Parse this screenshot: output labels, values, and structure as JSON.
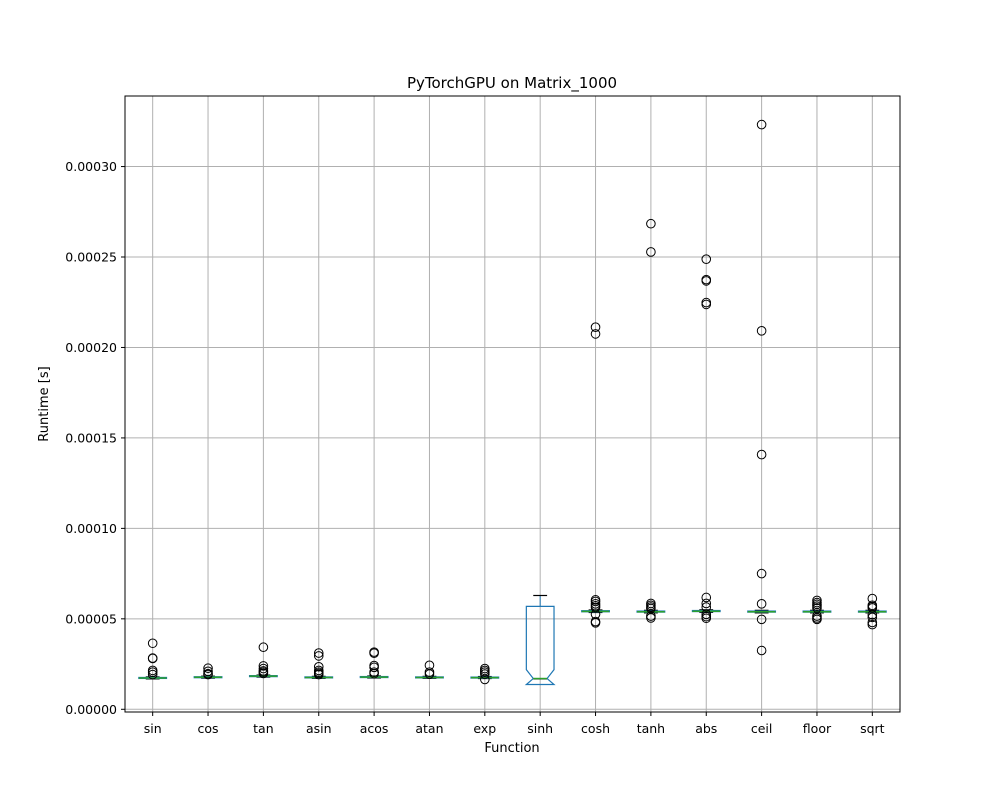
{
  "chart_data": {
    "type": "boxplot",
    "title": "PyTorchGPU on Matrix_1000",
    "xlabel": "Function",
    "ylabel": "Runtime [s]",
    "ylim": [
      -1.5e-06,
      0.000339
    ],
    "yticks": [
      0,
      5e-05,
      0.0001,
      0.00015,
      0.0002,
      0.00025,
      0.0003
    ],
    "ytick_labels": [
      "0.00000",
      "0.00005",
      "0.00010",
      "0.00015",
      "0.00020",
      "0.00025",
      "0.00030"
    ],
    "grid": true,
    "colors": {
      "box": "#1f77b4",
      "median": "#2ca02c",
      "outlier": "#000000",
      "grid": "#b0b0b0"
    },
    "categories": [
      "sin",
      "cos",
      "tan",
      "asin",
      "acos",
      "atan",
      "exp",
      "sinh",
      "cosh",
      "tanh",
      "abs",
      "ceil",
      "floor",
      "sqrt"
    ],
    "boxes": [
      {
        "label": "sin",
        "whislo": 1.68e-05,
        "q1": 1.71e-05,
        "median": 1.73e-05,
        "q3": 1.76e-05,
        "whishi": 1.79e-05,
        "fliers": [
          3.65e-05,
          2.83e-05,
          2.81e-05,
          2.15e-05,
          2.05e-05,
          1.92e-05
        ]
      },
      {
        "label": "cos",
        "whislo": 1.72e-05,
        "q1": 1.75e-05,
        "median": 1.77e-05,
        "q3": 1.8e-05,
        "whishi": 1.83e-05,
        "fliers": [
          2.27e-05,
          2.1e-05,
          1.97e-05,
          1.92e-05
        ]
      },
      {
        "label": "tan",
        "whislo": 1.78e-05,
        "q1": 1.81e-05,
        "median": 1.83e-05,
        "q3": 1.86e-05,
        "whishi": 1.89e-05,
        "fliers": [
          3.43e-05,
          2.4e-05,
          2.25e-05,
          2.12e-05,
          2.05e-05,
          1.98e-05
        ]
      },
      {
        "label": "asin",
        "whislo": 1.71e-05,
        "q1": 1.74e-05,
        "median": 1.76e-05,
        "q3": 1.79e-05,
        "whishi": 1.82e-05,
        "fliers": [
          3.11e-05,
          2.95e-05,
          2.35e-05,
          2.15e-05,
          2.05e-05,
          1.98e-05,
          1.92e-05
        ]
      },
      {
        "label": "acos",
        "whislo": 1.73e-05,
        "q1": 1.76e-05,
        "median": 1.78e-05,
        "q3": 1.81e-05,
        "whishi": 1.84e-05,
        "fliers": [
          3.16e-05,
          3.1e-05,
          2.42e-05,
          2.32e-05,
          2.05e-05,
          1.97e-05
        ]
      },
      {
        "label": "atan",
        "whislo": 1.71e-05,
        "q1": 1.74e-05,
        "median": 1.76e-05,
        "q3": 1.79e-05,
        "whishi": 1.82e-05,
        "fliers": [
          2.43e-05,
          2.05e-05,
          1.95e-05
        ]
      },
      {
        "label": "exp",
        "whislo": 1.7e-05,
        "q1": 1.73e-05,
        "median": 1.75e-05,
        "q3": 1.78e-05,
        "whishi": 1.81e-05,
        "fliers": [
          2.25e-05,
          2.15e-05,
          2.05e-05,
          1.95e-05,
          1.65e-05
        ]
      },
      {
        "label": "sinh",
        "whislo": 1.68e-05,
        "q1": 1.69e-05,
        "median": 1.7e-05,
        "q3": 5.69e-05,
        "whishi": 6.29e-05,
        "notch": [
          2.19e-05,
          1.37e-05
        ],
        "fliers": []
      },
      {
        "label": "cosh",
        "whislo": 5.35e-05,
        "q1": 5.39e-05,
        "median": 5.41e-05,
        "q3": 5.45e-05,
        "whishi": 5.49e-05,
        "fliers": [
          0.0002112,
          0.0002075,
          6.05e-05,
          5.96e-05,
          5.83e-05,
          5.72e-05,
          5.63e-05,
          5.25e-05,
          4.85e-05,
          4.78e-05
        ]
      },
      {
        "label": "tanh",
        "whislo": 5.33e-05,
        "q1": 5.37e-05,
        "median": 5.39e-05,
        "q3": 5.43e-05,
        "whishi": 5.47e-05,
        "fliers": [
          0.0002684,
          0.0002528,
          5.85e-05,
          5.75e-05,
          5.65e-05,
          5.57e-05,
          5.15e-05,
          5.05e-05
        ]
      },
      {
        "label": "abs",
        "whislo": 5.36e-05,
        "q1": 5.4e-05,
        "median": 5.42e-05,
        "q3": 5.46e-05,
        "whishi": 5.5e-05,
        "fliers": [
          0.0002488,
          0.0002375,
          0.0002368,
          0.0002248,
          0.0002238,
          6.18e-05,
          5.85e-05,
          5.65e-05,
          5.25e-05,
          5.12e-05,
          5.03e-05
        ]
      },
      {
        "label": "ceil",
        "whislo": 5.33e-05,
        "q1": 5.37e-05,
        "median": 5.39e-05,
        "q3": 5.43e-05,
        "whishi": 5.47e-05,
        "fliers": [
          0.0003232,
          0.0002092,
          0.0001408,
          7.5e-05,
          5.83e-05,
          4.97e-05,
          3.25e-05
        ]
      },
      {
        "label": "floor",
        "whislo": 5.33e-05,
        "q1": 5.37e-05,
        "median": 5.39e-05,
        "q3": 5.43e-05,
        "whishi": 5.47e-05,
        "fliers": [
          6.02e-05,
          5.9e-05,
          5.8e-05,
          5.7e-05,
          5.6e-05,
          5.15e-05,
          5.05e-05,
          4.97e-05
        ]
      },
      {
        "label": "sqrt",
        "whislo": 5.33e-05,
        "q1": 5.37e-05,
        "median": 5.39e-05,
        "q3": 5.43e-05,
        "whishi": 5.47e-05,
        "fliers": [
          6.12e-05,
          5.75e-05,
          5.68e-05,
          5.6e-05,
          5.22e-05,
          5.08e-05,
          4.8e-05,
          4.68e-05
        ]
      }
    ]
  }
}
